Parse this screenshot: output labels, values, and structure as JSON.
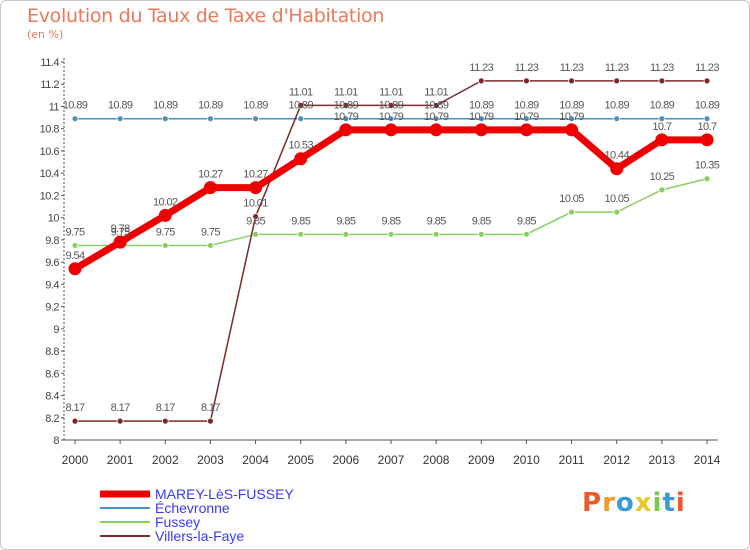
{
  "title": "Evolution du Taux de Taxe d'Habitation",
  "subtitle": "(en %)",
  "logo": {
    "text": "Proxiti",
    "letters": [
      {
        "ch": "P",
        "color": "#e85a2a"
      },
      {
        "ch": "r",
        "color": "#f09a2a"
      },
      {
        "ch": "o",
        "color": "#3a9ad8"
      },
      {
        "ch": "x",
        "color": "#e8c82a"
      },
      {
        "ch": "i",
        "color": "#7ac84a"
      },
      {
        "ch": "t",
        "color": "#3a9ad8"
      },
      {
        "ch": "i",
        "color": "#e85a2a"
      }
    ]
  },
  "chart_data": {
    "type": "line",
    "title": "Evolution du Taux de Taxe d'Habitation",
    "ylabel": "(en %)",
    "xlabel": "",
    "x": [
      "2000",
      "2001",
      "2002",
      "2003",
      "2004",
      "2005",
      "2006",
      "2007",
      "2008",
      "2009",
      "2010",
      "2011",
      "2012",
      "2013",
      "2014"
    ],
    "ylim": [
      8,
      11.4
    ],
    "yticks": [
      "8",
      "8.2",
      "8.4",
      "8.6",
      "8.8",
      "9",
      "9.2",
      "9.4",
      "9.6",
      "9.8",
      "10",
      "10.2",
      "10.4",
      "10.6",
      "10.8",
      "11",
      "11.2",
      "11.4"
    ],
    "grid": false,
    "legend": "bottom-left",
    "series": [
      {
        "name": "MAREY-LèS-FUSSEY",
        "color": "#ee0000",
        "bold": true,
        "values": [
          9.54,
          9.78,
          10.02,
          10.27,
          10.27,
          10.53,
          10.79,
          10.79,
          10.79,
          10.79,
          10.79,
          10.79,
          10.44,
          10.7,
          10.7
        ],
        "labels": [
          "9.54",
          "9.78",
          "10.02",
          "10.27",
          "10.27",
          "10.53",
          "10.79",
          "10.79",
          "10.79",
          "10.79",
          "10.79",
          "10.79",
          "10.44",
          "10.7",
          "10.7"
        ]
      },
      {
        "name": "Échevronne",
        "color": "#4a90c0",
        "values": [
          10.89,
          10.89,
          10.89,
          10.89,
          10.89,
          10.89,
          10.89,
          10.89,
          10.89,
          10.89,
          10.89,
          10.89,
          10.89,
          10.89,
          10.89
        ],
        "labels": [
          "10.89",
          "10.89",
          "10.89",
          "10.89",
          "10.89",
          "10.89",
          "10.89",
          "10.89",
          "10.89",
          "10.89",
          "10.89",
          "10.89",
          "10.89",
          "10.89",
          "10.89"
        ]
      },
      {
        "name": "Fussey",
        "color": "#88d060",
        "values": [
          9.75,
          9.75,
          9.75,
          9.75,
          9.85,
          9.85,
          9.85,
          9.85,
          9.85,
          9.85,
          9.85,
          10.05,
          10.05,
          10.25,
          10.35
        ],
        "labels": [
          "9.75",
          "9.75",
          "9.75",
          "9.75",
          "9.85",
          "9.85",
          "9.85",
          "9.85",
          "9.85",
          "9.85",
          "9.85",
          "10.05",
          "10.05",
          "10.25",
          "10.35"
        ]
      },
      {
        "name": "Villers-la-Faye",
        "color": "#7a2a2a",
        "values": [
          8.17,
          8.17,
          8.17,
          8.17,
          10.01,
          11.01,
          11.01,
          11.01,
          11.01,
          11.23,
          11.23,
          11.23,
          11.23,
          11.23,
          11.23
        ],
        "labels": [
          "8.17",
          "8.17",
          "8.17",
          "8.17",
          "10.01",
          "11.01",
          "11.01",
          "11.01",
          "11.01",
          "11.23",
          "11.23",
          "11.23",
          "11.23",
          "11.23",
          "11.23"
        ]
      }
    ]
  }
}
